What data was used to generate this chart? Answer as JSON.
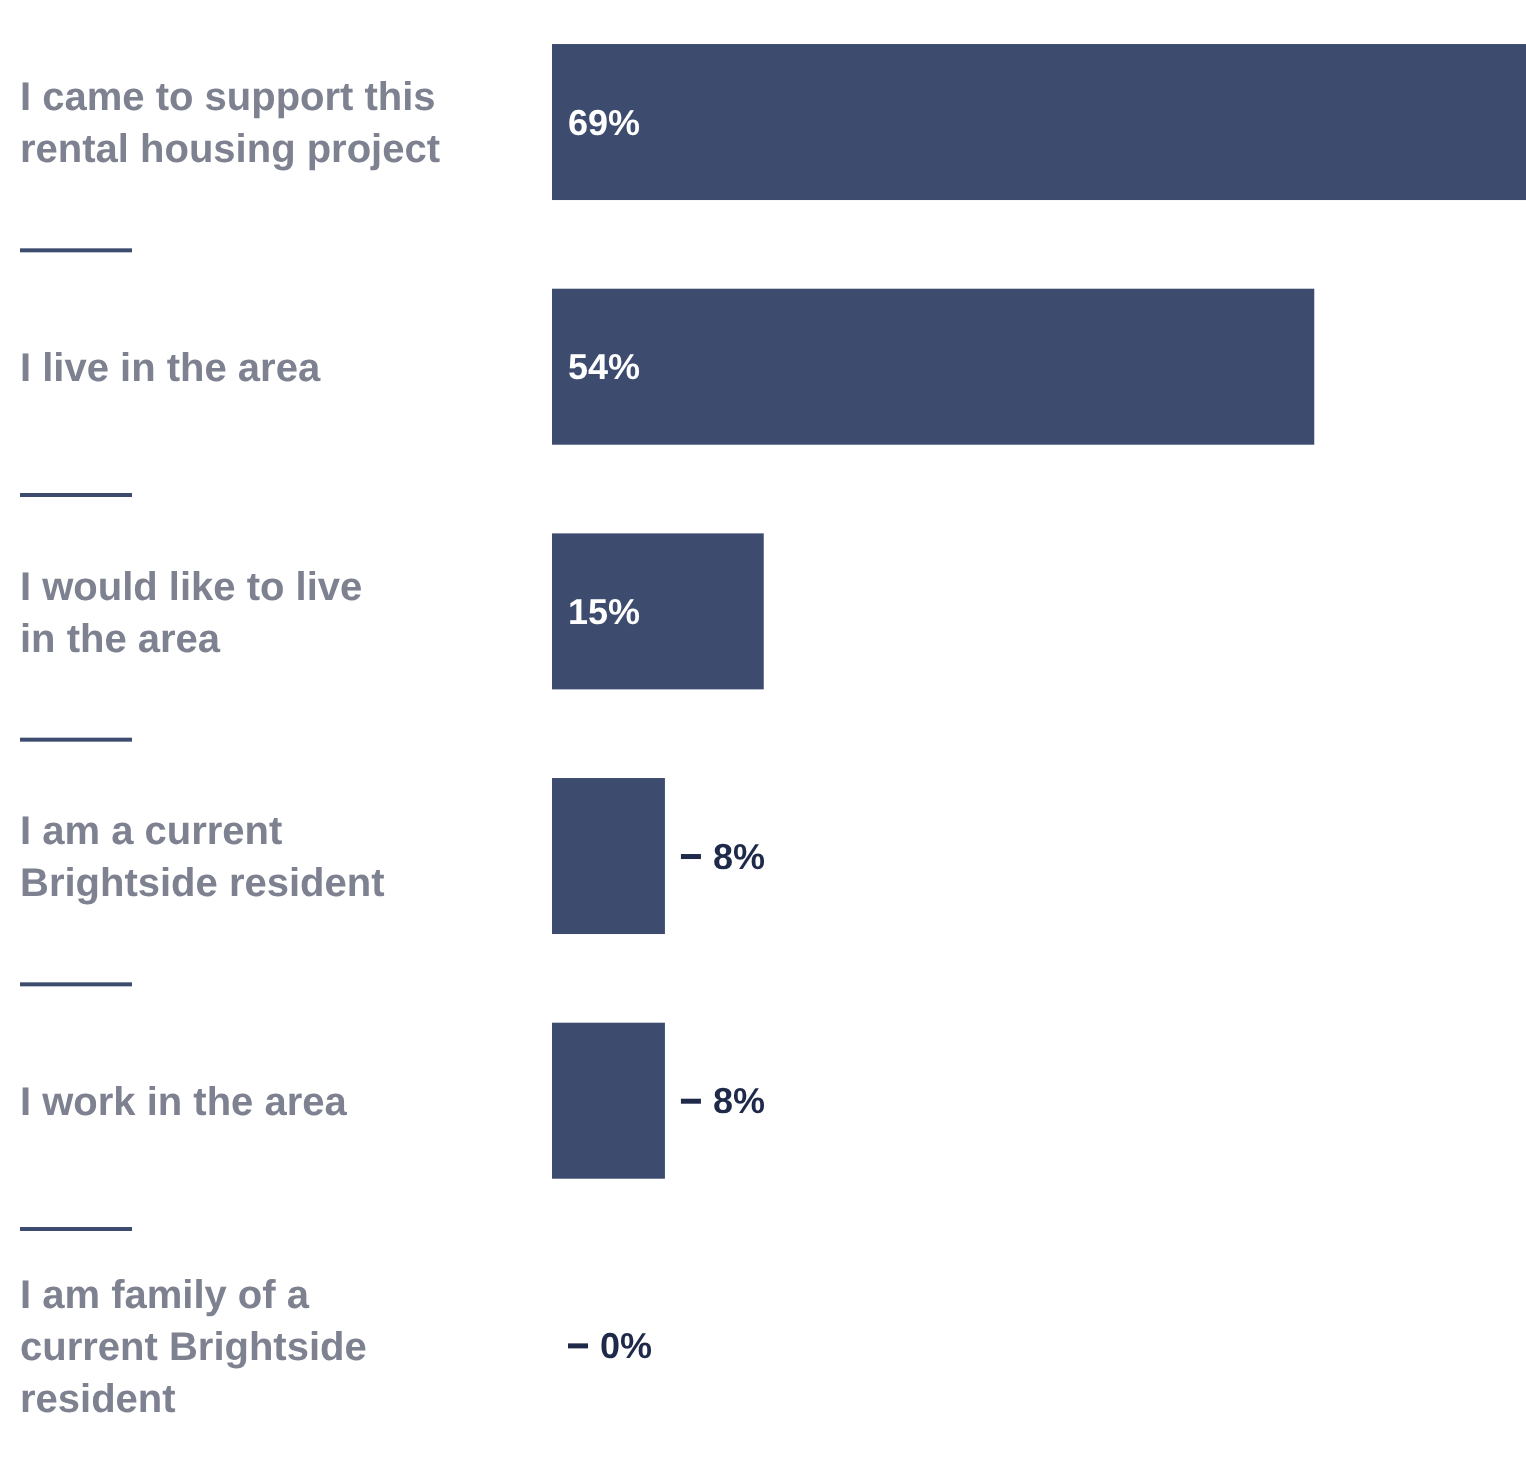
{
  "chart_data": {
    "type": "bar",
    "orientation": "horizontal",
    "categories": [
      "I came to support this rental housing project",
      "I live in the area",
      "I would like to live in the area",
      "I am a current Brightside resident",
      "I work in the area",
      "I am family of a current Brightside resident"
    ],
    "values": [
      69,
      54,
      15,
      8,
      8,
      0
    ],
    "value_labels": [
      "69%",
      "54%",
      "15%",
      "8%",
      "8%",
      "0%"
    ],
    "color": "#3c4b6e"
  }
}
